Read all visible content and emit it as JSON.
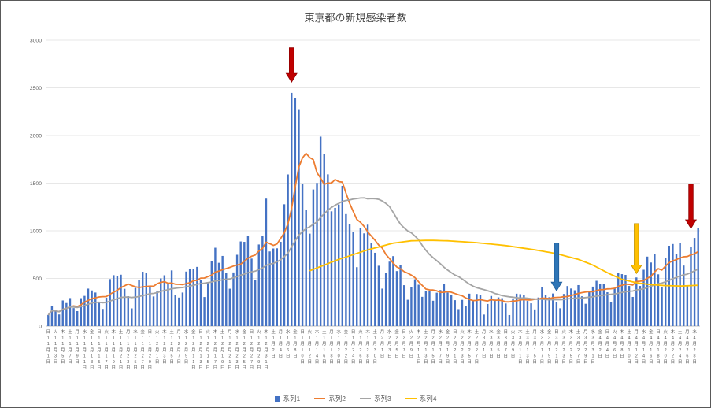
{
  "window": {
    "background": "#ffffff",
    "border_color": "#595959"
  },
  "chart_data": {
    "type": "combo",
    "title": "東京都の新規感染者数",
    "xlabel": "",
    "ylabel": "",
    "ylim": [
      0,
      3000
    ],
    "y_ticks": [
      0,
      500,
      1000,
      1500,
      2000,
      2500,
      3000
    ],
    "grid": "horizontal",
    "legend_position": "bottom",
    "x_axis": {
      "start_date": "2020-11-01",
      "end_date": "2021-04-29",
      "tick_every_days": 2,
      "weekday_chars": [
        "日",
        "月",
        "火",
        "水",
        "木",
        "金",
        "土"
      ],
      "month_suffix": "月",
      "day_suffix": "日",
      "label_color": "#595959"
    },
    "series": [
      {
        "name": "系列1",
        "kind": "bar",
        "color": "#4472C4",
        "values": [
          116,
          209,
          158,
          122,
          269,
          242,
          294,
          189,
          157,
          293,
          317,
          393,
          374,
          352,
          255,
          180,
          298,
          493,
          534,
          522,
          539,
          391,
          314,
          186,
          401,
          481,
          570,
          561,
          418,
          311,
          372,
          500,
          533,
          449,
          584,
          327,
          299,
          352,
          572,
          602,
          595,
          621,
          480,
          305,
          460,
          678,
          822,
          664,
          736,
          556,
          392,
          563,
          748,
          888,
          884,
          949,
          708,
          481,
          856,
          944,
          1337,
          783,
          814,
          816,
          884,
          1278,
          1591,
          2447,
          2392,
          2268,
          1494,
          1219,
          970,
          1433,
          1502,
          1988,
          1809,
          1592,
          1204,
          1240,
          1274,
          1471,
          1175,
          1070,
          986,
          618,
          1026,
          973,
          1064,
          868,
          769,
          633,
          393,
          556,
          676,
          734,
          577,
          639,
          429,
          276,
          412,
          491,
          434,
          307,
          369,
          371,
          266,
          350,
          378,
          445,
          353,
          327,
          272,
          178,
          275,
          213,
          340,
          270,
          337,
          329,
          121,
          232,
          316,
          279,
          301,
          293,
          237,
          116,
          290,
          340,
          335,
          330,
          264,
          239,
          175,
          300,
          409,
          323,
          303,
          342,
          256,
          187,
          337,
          420,
          394,
          376,
          430,
          313,
          234,
          364,
          414,
          475,
          440,
          446,
          355,
          249,
          399,
          555,
          545,
          537,
          421,
          306,
          510,
          421,
          591,
          729,
          667,
          759,
          543,
          405,
          711,
          843,
          861,
          759,
          876,
          635,
          425,
          828,
          925,
          1027
        ]
      },
      {
        "name": "系列2",
        "kind": "line",
        "color": "#ED7D31",
        "derived": "moving_average",
        "window": 7,
        "source_series": 0
      },
      {
        "name": "系列3",
        "kind": "line",
        "color": "#A5A5A5",
        "derived": "moving_average",
        "window": 28,
        "source_series": 0
      },
      {
        "name": "系列4",
        "kind": "line",
        "color": "#FFC000",
        "control_points": [
          [
            72,
            580
          ],
          [
            80,
            700
          ],
          [
            88,
            800
          ],
          [
            95,
            870
          ],
          [
            100,
            895
          ],
          [
            105,
            900
          ],
          [
            110,
            895
          ],
          [
            118,
            875
          ],
          [
            126,
            845
          ],
          [
            134,
            800
          ],
          [
            140,
            760
          ],
          [
            146,
            700
          ],
          [
            150,
            640
          ],
          [
            154,
            560
          ],
          [
            158,
            490
          ],
          [
            162,
            455
          ],
          [
            166,
            435
          ],
          [
            170,
            425
          ],
          [
            174,
            420
          ],
          [
            179,
            428
          ]
        ]
      }
    ],
    "annotations": [
      {
        "shape": "down-arrow",
        "color": "#C00000",
        "stroke": "#900000",
        "day_index": 67,
        "tip_value": 2560,
        "tail_value": 2920
      },
      {
        "shape": "down-arrow",
        "color": "#2E75B6",
        "stroke": "#1F5C99",
        "day_index": 140,
        "tip_value": 370,
        "tail_value": 870
      },
      {
        "shape": "down-arrow",
        "color": "#FFC000",
        "stroke": "#BF8F00",
        "day_index": 162,
        "tip_value": 550,
        "tail_value": 1075
      },
      {
        "shape": "down-arrow",
        "color": "#C00000",
        "stroke": "#900000",
        "day_index": 177,
        "tip_value": 1025,
        "tail_value": 1490
      }
    ]
  }
}
